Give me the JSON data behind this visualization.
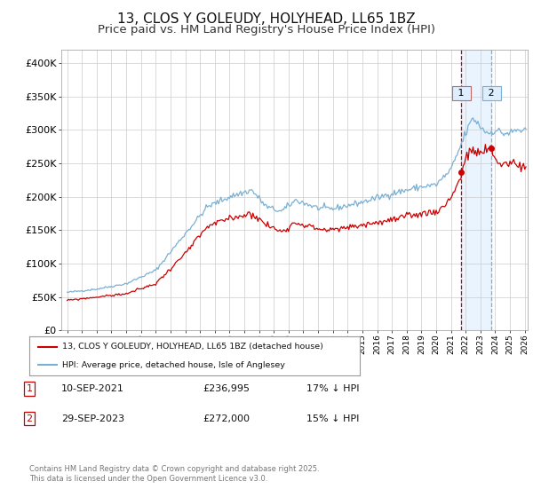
{
  "title_line1": "13, CLOS Y GOLEUDY, HOLYHEAD, LL65 1BZ",
  "title_line2": "Price paid vs. HM Land Registry's House Price Index (HPI)",
  "legend_label_red": "13, CLOS Y GOLEUDY, HOLYHEAD, LL65 1BZ (detached house)",
  "legend_label_blue": "HPI: Average price, detached house, Isle of Anglesey",
  "sale1_date": "10-SEP-2021",
  "sale1_price": 236995,
  "sale1_note": "17% ↓ HPI",
  "sale1_year": 2021.7,
  "sale1_value_red": 236995,
  "sale2_date": "29-SEP-2023",
  "sale2_price": 272000,
  "sale2_note": "15% ↓ HPI",
  "sale2_year": 2023.75,
  "sale2_value_red": 272000,
  "footer": "Contains HM Land Registry data © Crown copyright and database right 2025.\nThis data is licensed under the Open Government Licence v3.0.",
  "ylim_min": 0,
  "ylim_max": 420000,
  "xlim_min": 1994.6,
  "xlim_max": 2026.2,
  "color_red": "#cc0000",
  "color_blue": "#7ab0d4",
  "color_blue_shade": "#ddeeff",
  "color_grid": "#cccccc",
  "background_color": "#ffffff",
  "title_fontsize": 11,
  "subtitle_fontsize": 9.5
}
